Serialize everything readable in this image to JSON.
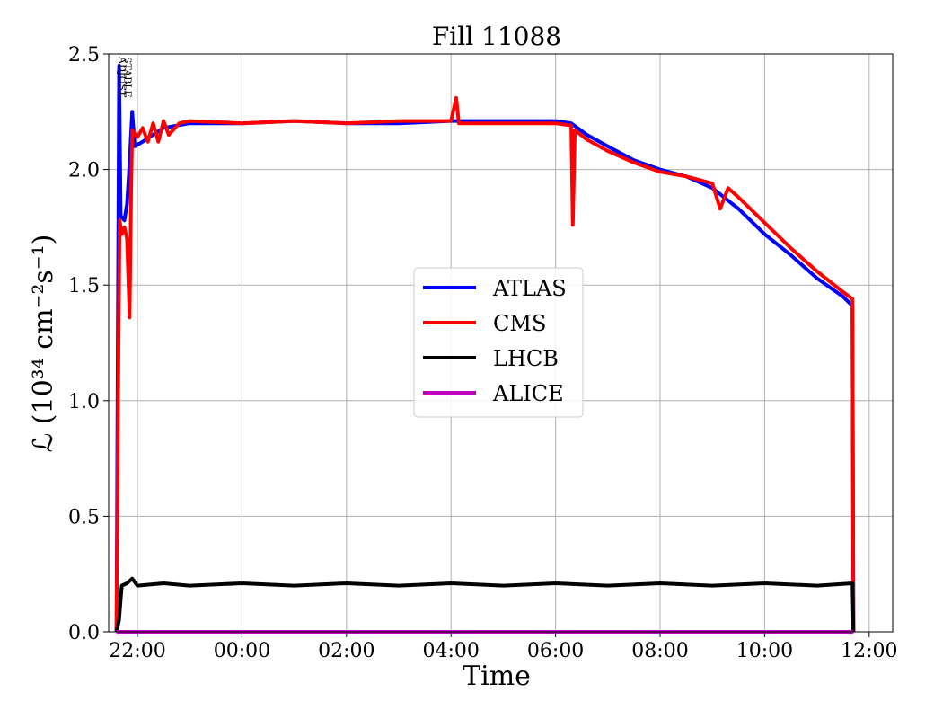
{
  "chart_data": {
    "type": "line",
    "title": "Fill 11088",
    "xlabel": "Time",
    "ylabel": "ℒ (10³⁴ cm⁻²s⁻¹)",
    "x_unit": "hours since 22:00",
    "xlim": [
      -0.55,
      14.45
    ],
    "ylim": [
      0.0,
      2.5
    ],
    "x_ticks": [
      {
        "value": 0,
        "label": "22:00"
      },
      {
        "value": 2,
        "label": "00:00"
      },
      {
        "value": 4,
        "label": "02:00"
      },
      {
        "value": 6,
        "label": "04:00"
      },
      {
        "value": 8,
        "label": "06:00"
      },
      {
        "value": 10,
        "label": "08:00"
      },
      {
        "value": 12,
        "label": "10:00"
      },
      {
        "value": 14,
        "label": "12:00"
      }
    ],
    "y_ticks": [
      {
        "value": 0.0,
        "label": "0.0"
      },
      {
        "value": 0.5,
        "label": "0.5"
      },
      {
        "value": 1.0,
        "label": "1.0"
      },
      {
        "value": 1.5,
        "label": "1.5"
      },
      {
        "value": 2.0,
        "label": "2.0"
      },
      {
        "value": 2.5,
        "label": "2.5"
      }
    ],
    "grid": true,
    "legend_position": "center-right",
    "annotations": [
      {
        "text": "ADJUST",
        "x": -0.42
      },
      {
        "text": "STABLE",
        "x": -0.32
      }
    ],
    "series": [
      {
        "name": "ATLAS",
        "color": "#0000ff",
        "points": [
          [
            -0.4,
            0
          ],
          [
            -0.38,
            1.05
          ],
          [
            -0.35,
            2.45
          ],
          [
            -0.32,
            1.8
          ],
          [
            -0.25,
            1.78
          ],
          [
            -0.2,
            1.85
          ],
          [
            -0.15,
            2.03
          ],
          [
            -0.1,
            2.25
          ],
          [
            -0.05,
            2.1
          ],
          [
            0.1,
            2.12
          ],
          [
            0.3,
            2.15
          ],
          [
            0.5,
            2.18
          ],
          [
            1.0,
            2.2
          ],
          [
            2.0,
            2.2
          ],
          [
            3.0,
            2.21
          ],
          [
            4.0,
            2.2
          ],
          [
            5.0,
            2.2
          ],
          [
            6.0,
            2.21
          ],
          [
            7.0,
            2.21
          ],
          [
            7.5,
            2.21
          ],
          [
            8.0,
            2.21
          ],
          [
            8.3,
            2.2
          ],
          [
            8.6,
            2.15
          ],
          [
            9.0,
            2.1
          ],
          [
            9.5,
            2.04
          ],
          [
            10.0,
            2.0
          ],
          [
            10.5,
            1.97
          ],
          [
            11.0,
            1.92
          ],
          [
            11.5,
            1.83
          ],
          [
            12.0,
            1.72
          ],
          [
            12.5,
            1.63
          ],
          [
            13.0,
            1.53
          ],
          [
            13.5,
            1.45
          ],
          [
            13.68,
            1.41
          ],
          [
            13.7,
            0
          ]
        ]
      },
      {
        "name": "CMS",
        "color": "#ff0000",
        "points": [
          [
            -0.4,
            0
          ],
          [
            -0.37,
            1.0
          ],
          [
            -0.34,
            1.78
          ],
          [
            -0.3,
            1.72
          ],
          [
            -0.25,
            1.75
          ],
          [
            -0.2,
            1.7
          ],
          [
            -0.15,
            1.36
          ],
          [
            -0.12,
            1.9
          ],
          [
            -0.1,
            2.17
          ],
          [
            0.0,
            2.14
          ],
          [
            0.1,
            2.18
          ],
          [
            0.2,
            2.12
          ],
          [
            0.3,
            2.2
          ],
          [
            0.4,
            2.12
          ],
          [
            0.5,
            2.21
          ],
          [
            0.6,
            2.15
          ],
          [
            0.8,
            2.2
          ],
          [
            1.0,
            2.21
          ],
          [
            2.0,
            2.2
          ],
          [
            3.0,
            2.21
          ],
          [
            4.0,
            2.2
          ],
          [
            5.0,
            2.21
          ],
          [
            6.0,
            2.21
          ],
          [
            6.1,
            2.31
          ],
          [
            6.15,
            2.2
          ],
          [
            7.0,
            2.2
          ],
          [
            8.0,
            2.2
          ],
          [
            8.3,
            2.19
          ],
          [
            8.33,
            1.76
          ],
          [
            8.37,
            2.17
          ],
          [
            8.6,
            2.13
          ],
          [
            9.0,
            2.08
          ],
          [
            9.5,
            2.03
          ],
          [
            10.0,
            1.99
          ],
          [
            10.5,
            1.97
          ],
          [
            11.0,
            1.94
          ],
          [
            11.15,
            1.83
          ],
          [
            11.3,
            1.92
          ],
          [
            11.5,
            1.88
          ],
          [
            12.0,
            1.77
          ],
          [
            12.5,
            1.66
          ],
          [
            13.0,
            1.56
          ],
          [
            13.5,
            1.47
          ],
          [
            13.68,
            1.44
          ],
          [
            13.7,
            0
          ]
        ]
      },
      {
        "name": "LHCB",
        "color": "#000000",
        "points": [
          [
            -0.4,
            0
          ],
          [
            -0.35,
            0.05
          ],
          [
            -0.3,
            0.2
          ],
          [
            -0.2,
            0.21
          ],
          [
            -0.1,
            0.23
          ],
          [
            0.0,
            0.2
          ],
          [
            0.5,
            0.21
          ],
          [
            1.0,
            0.2
          ],
          [
            2.0,
            0.21
          ],
          [
            3.0,
            0.2
          ],
          [
            4.0,
            0.21
          ],
          [
            5.0,
            0.2
          ],
          [
            6.0,
            0.21
          ],
          [
            7.0,
            0.2
          ],
          [
            8.0,
            0.21
          ],
          [
            9.0,
            0.2
          ],
          [
            10.0,
            0.21
          ],
          [
            11.0,
            0.2
          ],
          [
            12.0,
            0.21
          ],
          [
            13.0,
            0.2
          ],
          [
            13.68,
            0.21
          ],
          [
            13.7,
            0
          ]
        ]
      },
      {
        "name": "ALICE",
        "color": "#bf00bf",
        "points": [
          [
            -0.4,
            0.0
          ],
          [
            13.7,
            0.0
          ]
        ]
      }
    ]
  }
}
